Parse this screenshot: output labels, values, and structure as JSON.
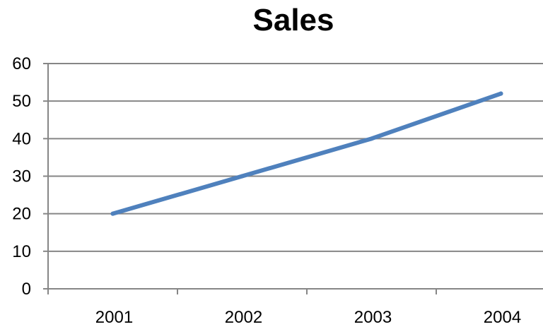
{
  "chart_data": {
    "type": "line",
    "title": "Sales",
    "xlabel": "",
    "ylabel": "",
    "categories": [
      "2001",
      "2002",
      "2003",
      "2004"
    ],
    "series": [
      {
        "values": [
          20,
          30,
          40,
          52
        ]
      }
    ],
    "ylim": [
      0,
      60
    ],
    "yticks": [
      0,
      10,
      20,
      30,
      40,
      50,
      60
    ],
    "grid": true,
    "legend": "none",
    "line_color": "#4F81BD",
    "grid_color": "#868686"
  }
}
